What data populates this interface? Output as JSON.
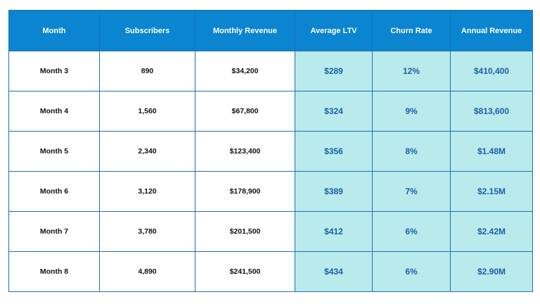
{
  "table": {
    "headers": [
      "Month",
      "Subscribers",
      "Monthly Revenue",
      "Average LTV",
      "Churn Rate",
      "Annual Revenue"
    ],
    "rows": [
      [
        "Month 3",
        "890",
        "$34,200",
        "$289",
        "12%",
        "$410,400"
      ],
      [
        "Month 4",
        "1,560",
        "$67,800",
        "$324",
        "9%",
        "$813,600"
      ],
      [
        "Month 5",
        "2,340",
        "$123,400",
        "$356",
        "8%",
        "$1.48M"
      ],
      [
        "Month 6",
        "3,120",
        "$178,900",
        "$389",
        "7%",
        "$2.15M"
      ],
      [
        "Month 7",
        "3,780",
        "$201,500",
        "$412",
        "6%",
        "$2.42M"
      ],
      [
        "Month 8",
        "4,890",
        "$241,500",
        "$434",
        "6%",
        "$2.90M"
      ]
    ]
  },
  "colors": {
    "header_bg": "#0b85cf",
    "header_text": "#ffffff",
    "highlight_bg": "#b9eaec",
    "highlight_text": "#1d5fa8",
    "border": "#1f6fb5"
  }
}
